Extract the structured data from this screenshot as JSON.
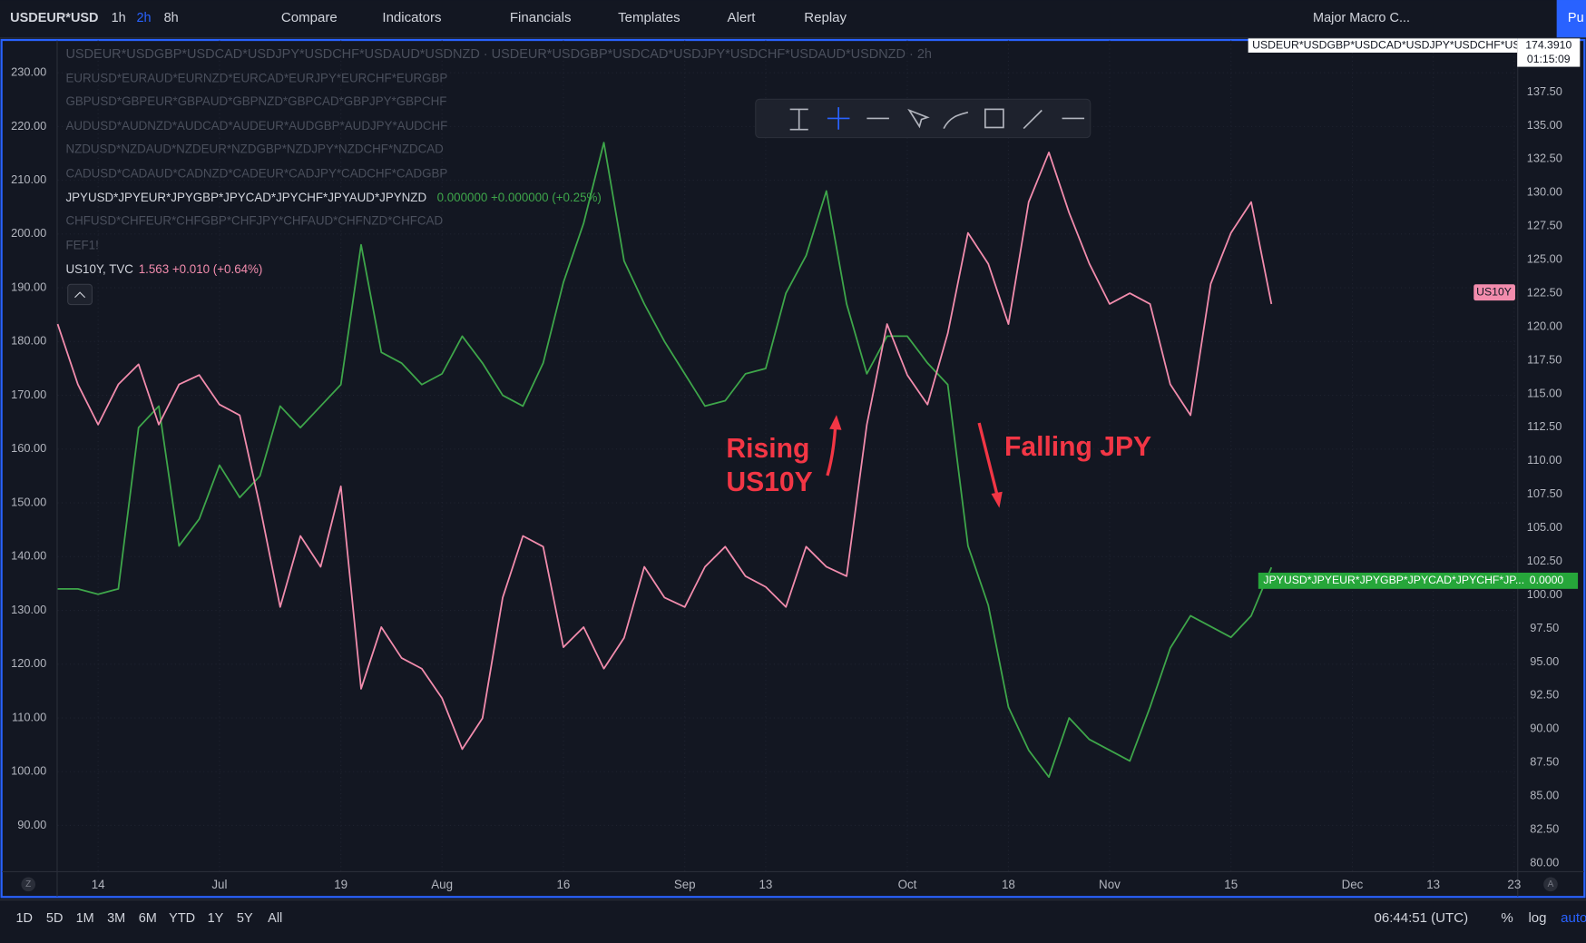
{
  "toolbar": {
    "symbol": "USDEUR*USD",
    "intervals": [
      "1h",
      "2h",
      "8h"
    ],
    "buttons": [
      "Compare",
      "Indicators",
      "Financials",
      "Templates",
      "Alert",
      "Replay"
    ],
    "layout_name": "Major Macro C...",
    "publish": "Pu"
  },
  "legend": {
    "main": "USDEUR*USDGBP*USDCAD*USDJPY*USDCHF*USDAUD*USDNZD · USDEUR*USDGBP*USDCAD*USDJPY*USDCHF*USDAUD*USDNZD · 2h",
    "hidden": [
      "EURUSD*EURAUD*EURNZD*EURCAD*EURJPY*EURCHF*EURGBP",
      "GBPUSD*GBPEUR*GBPAUD*GBPNZD*GBPCAD*GBPJPY*GBPCHF",
      "AUDUSD*AUDNZD*AUDCAD*AUDEUR*AUDGBP*AUDJPY*AUDCHF",
      "NZDUSD*NZDAUD*NZDEUR*NZDGBP*NZDJPY*NZDCHF*NZDCAD",
      "CADUSD*CADAUD*CADNZD*CADEUR*CADJPY*CADCHF*CADGBP"
    ],
    "jpy_name": "JPYUSD*JPYEUR*JPYGBP*JPYCAD*JPYCHF*JPYAUD*JPYNZD",
    "jpy_values": "0.000000  +0.000000 (+0.25%)",
    "chf_name": "CHFUSD*CHFEUR*CHFGBP*CHFJPY*CHFAUD*CHFNZD*CHFCAD",
    "fef_name": "FEF1!",
    "us10y_name": "US10Y, TVC",
    "us10y_values": "1.563  +0.010 (+0.64%)"
  },
  "badges": {
    "main_name": "USDEUR*USDGBP*USDCAD*USDJPY*USDCHF*US...",
    "main_price": "174.3910",
    "countdown": "01:15:09",
    "us10y": "US10Y",
    "jpy_name": "JPYUSD*JPYEUR*JPYGBP*JPYCAD*JPYCHF*JP...",
    "jpy_price": "0.0000"
  },
  "chart_data": {
    "type": "line",
    "categories": [
      null,
      null,
      "14",
      null,
      null,
      null,
      null,
      null,
      "Jul",
      null,
      null,
      null,
      null,
      null,
      "19",
      null,
      null,
      null,
      null,
      "Aug",
      null,
      null,
      null,
      null,
      null,
      "16",
      null,
      null,
      null,
      null,
      null,
      "Sep",
      null,
      null,
      null,
      "13",
      null,
      null,
      null,
      null,
      null,
      null,
      "Oct",
      null,
      null,
      null,
      null,
      "18",
      null,
      null,
      null,
      null,
      "Nov",
      null,
      null,
      null,
      null,
      null,
      "15",
      null,
      null,
      null,
      null,
      null,
      "Dec",
      null,
      null,
      null,
      "13",
      null,
      null,
      null,
      "23"
    ],
    "series": [
      {
        "name": "JPYUSD*JPYEUR*JPYGBP*JPYCAD*JPYCHF*JPYAUD*JPYNZD",
        "color": "#3ea64a",
        "values": [
          134,
          134,
          133,
          134,
          164,
          168,
          142,
          147,
          157,
          151,
          155,
          168,
          164,
          168,
          172,
          198,
          178,
          176,
          172,
          174,
          181,
          176,
          170,
          168,
          176,
          191,
          202,
          217,
          195,
          187,
          180,
          174,
          168,
          169,
          174,
          175,
          189,
          196,
          208,
          187,
          174,
          181,
          181,
          176,
          172,
          142,
          131,
          112,
          104,
          99,
          110,
          106,
          104,
          102,
          112,
          123,
          129,
          127,
          125,
          129,
          138,
          null,
          null,
          null,
          null,
          null,
          null,
          null,
          null,
          null,
          null,
          null,
          null
        ]
      },
      {
        "name": "US10Y",
        "color": "#f28cad",
        "axis": "y2",
        "values": [
          120.2,
          115.7,
          112.7,
          115.7,
          117.2,
          112.7,
          115.7,
          116.4,
          114.2,
          113.4,
          106.6,
          99.1,
          104.4,
          102.1,
          108.1,
          93.0,
          97.6,
          95.3,
          94.5,
          92.3,
          88.5,
          90.8,
          99.8,
          104.4,
          103.6,
          96.1,
          97.6,
          94.5,
          96.8,
          102.1,
          99.8,
          99.1,
          102.1,
          103.6,
          101.4,
          100.6,
          99.1,
          103.6,
          102.1,
          101.4,
          112.7,
          120.2,
          116.4,
          114.2,
          119.5,
          127.0,
          124.7,
          120.2,
          129.3,
          133.0,
          128.5,
          124.7,
          121.7,
          122.5,
          121.7,
          115.7,
          113.4,
          123.2,
          127.0,
          129.3,
          121.7,
          null,
          null,
          null,
          null,
          null,
          null,
          null,
          null,
          null,
          null,
          null,
          null
        ]
      }
    ],
    "ylim": [
      81.5,
      236
    ],
    "yticks": [
      {
        "value": 230,
        "label": "230.00"
      },
      {
        "value": 220,
        "label": "220.00"
      },
      {
        "value": 210,
        "label": "210.00"
      },
      {
        "value": 200,
        "label": "200.00"
      },
      {
        "value": 190,
        "label": "190.00"
      },
      {
        "value": 180,
        "label": "180.00"
      },
      {
        "value": 170,
        "label": "170.00"
      },
      {
        "value": 160,
        "label": "160.00"
      },
      {
        "value": 150,
        "label": "150.00"
      },
      {
        "value": 140,
        "label": "140.00"
      },
      {
        "value": 130,
        "label": "130.00"
      },
      {
        "value": 120,
        "label": "120.00"
      },
      {
        "value": 110,
        "label": "110.00"
      },
      {
        "value": 100,
        "label": "100.00"
      },
      {
        "value": 90,
        "label": "90.00"
      }
    ],
    "y2lim": [
      79.4,
      141.35
    ],
    "y2ticks": [
      {
        "value": 137.5,
        "label": "137.50"
      },
      {
        "value": 135,
        "label": "135.00"
      },
      {
        "value": 132.5,
        "label": "132.50"
      },
      {
        "value": 130,
        "label": "130.00"
      },
      {
        "value": 127.5,
        "label": "127.50"
      },
      {
        "value": 125,
        "label": "125.00"
      },
      {
        "value": 122.5,
        "label": "122.50"
      },
      {
        "value": 120,
        "label": "120.00"
      },
      {
        "value": 117.5,
        "label": "117.50"
      },
      {
        "value": 115,
        "label": "115.00"
      },
      {
        "value": 112.5,
        "label": "112.50"
      },
      {
        "value": 110,
        "label": "110.00"
      },
      {
        "value": 107.5,
        "label": "107.50"
      },
      {
        "value": 105,
        "label": "105.00"
      },
      {
        "value": 102.5,
        "label": "102.50"
      },
      {
        "value": 100,
        "label": "100.00"
      },
      {
        "value": 97.5,
        "label": "97.50"
      },
      {
        "value": 95,
        "label": "95.00"
      },
      {
        "value": 92.5,
        "label": "92.50"
      },
      {
        "value": 90,
        "label": "90.00"
      },
      {
        "value": 87.5,
        "label": "87.50"
      },
      {
        "value": 85,
        "label": "85.00"
      },
      {
        "value": 82.5,
        "label": "82.50"
      },
      {
        "value": 80,
        "label": "80.00"
      }
    ],
    "grid": true,
    "annotations": [
      "Rising",
      "US10Y",
      "Falling JPY"
    ]
  },
  "axis_buttons": [
    "Z",
    "A"
  ],
  "bottom_bar": {
    "ranges": [
      "1D",
      "5D",
      "1M",
      "3M",
      "6M",
      "YTD",
      "1Y",
      "5Y",
      "All"
    ],
    "clock": "06:44:51 (UTC)",
    "percent": "%",
    "log": "log",
    "auto": "auto"
  }
}
